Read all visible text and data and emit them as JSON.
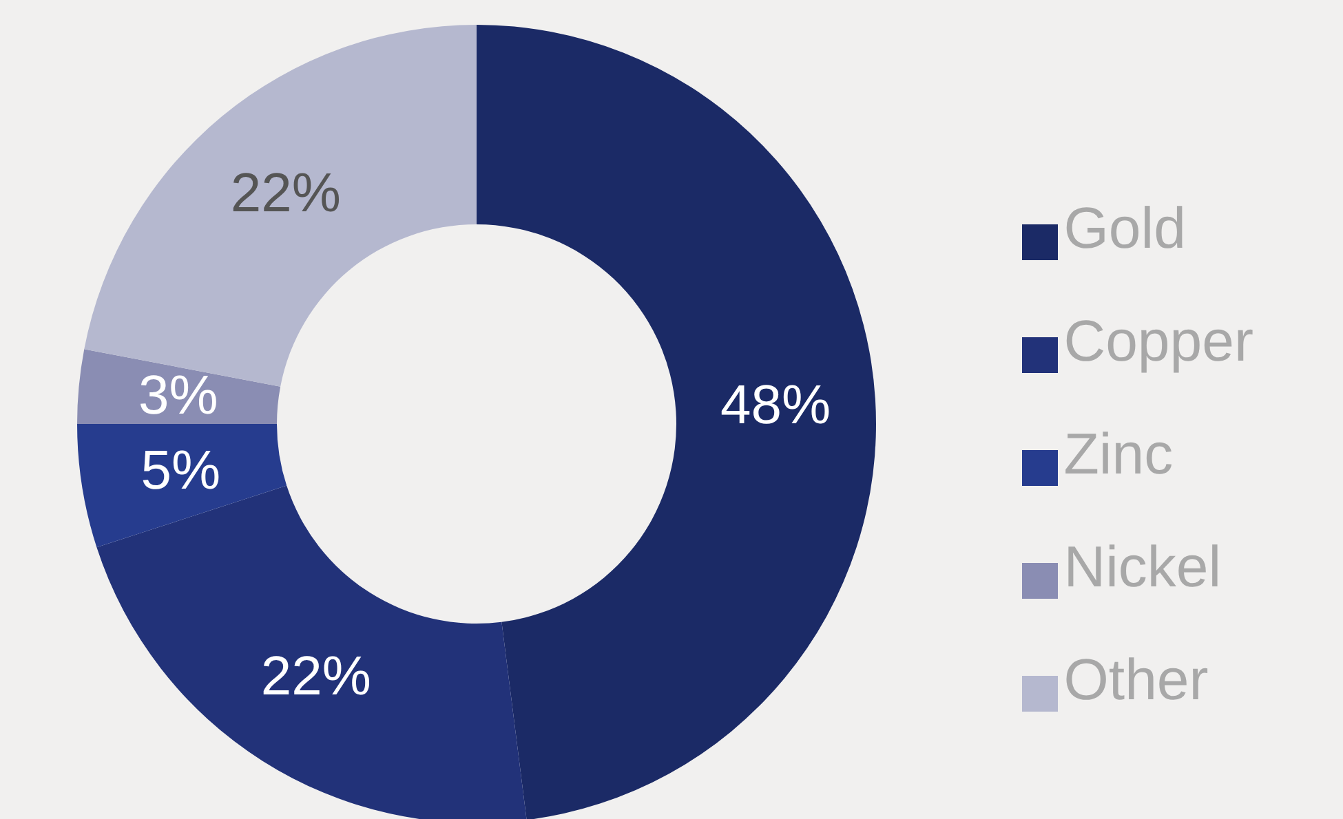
{
  "chart_data": {
    "type": "donut",
    "categories": [
      "Gold",
      "Copper",
      "Zinc",
      "Nickel",
      "Other"
    ],
    "values": [
      48,
      22,
      5,
      3,
      22
    ],
    "colors": [
      "#1b2a66",
      "#223279",
      "#263c8e",
      "#8a8db3",
      "#b5b8cf"
    ],
    "value_labels": [
      "48%",
      "22%",
      "5%",
      "3%",
      "22%"
    ],
    "legend": "right"
  }
}
